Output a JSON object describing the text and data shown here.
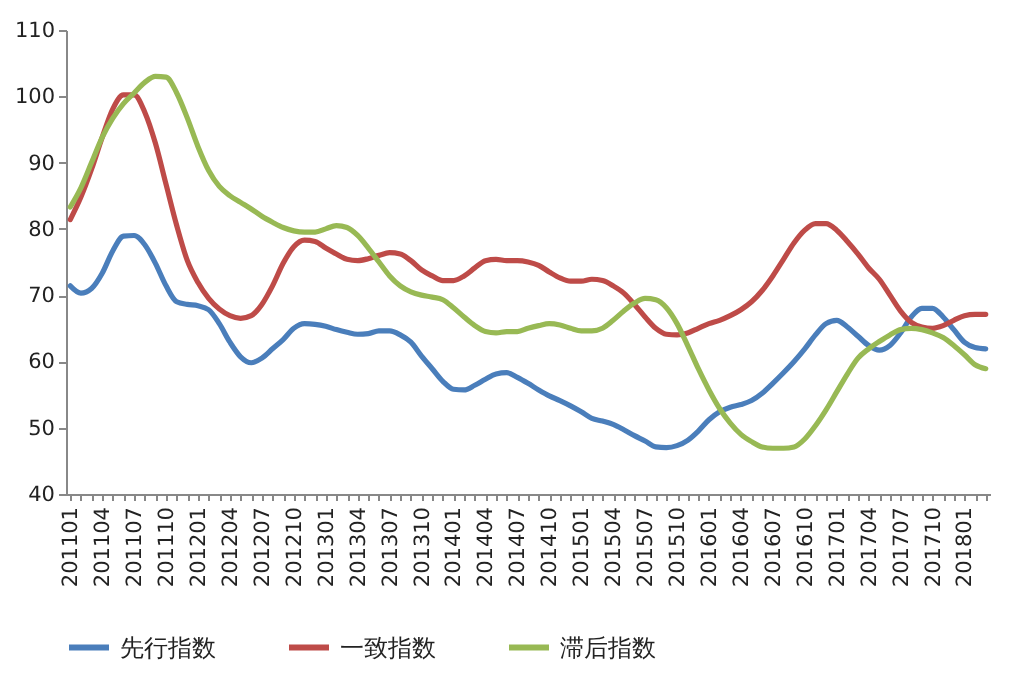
{
  "chart_data": {
    "type": "line",
    "categories": [
      "201101",
      null,
      null,
      "201104",
      null,
      null,
      "201107",
      null,
      null,
      "201110",
      null,
      null,
      "201201",
      null,
      null,
      "201204",
      null,
      null,
      "201207",
      null,
      null,
      "201210",
      null,
      null,
      "201301",
      null,
      null,
      "201304",
      null,
      null,
      "201307",
      null,
      null,
      "201310",
      null,
      null,
      "201401",
      null,
      null,
      "201404",
      null,
      null,
      "201407",
      null,
      null,
      "201410",
      null,
      null,
      "201501",
      null,
      null,
      "201504",
      null,
      null,
      "201507",
      null,
      null,
      "201510",
      null,
      null,
      "201601",
      null,
      null,
      "201604",
      null,
      null,
      "201607",
      null,
      null,
      "201610",
      null,
      null,
      "201701",
      null,
      null,
      "201704",
      null,
      null,
      "201707",
      null,
      null,
      "201710",
      null,
      null,
      "201801",
      null,
      null
    ],
    "series": [
      {
        "name": "先行指数",
        "color": "#4a7ebb",
        "values": [
          71.4,
          70.3,
          71,
          73.3,
          76.7,
          78.9,
          79,
          77.6,
          74.8,
          71.4,
          69,
          68.6,
          68.4,
          67.8,
          65.7,
          62.9,
          60.7,
          59.8,
          60.5,
          61.9,
          63.3,
          65,
          65.7,
          65.6,
          65.3,
          64.8,
          64.4,
          64.1,
          64.2,
          64.6,
          64.6,
          64,
          62.9,
          60.8,
          58.9,
          57,
          55.8,
          55.7,
          56.4,
          57.3,
          58.1,
          58.3,
          57.6,
          56.7,
          55.7,
          54.8,
          54.1,
          53.3,
          52.4,
          51.4,
          51,
          50.5,
          49.7,
          48.8,
          48,
          47.1,
          47,
          47.3,
          48.1,
          49.5,
          51.2,
          52.4,
          53.1,
          53.5,
          54.1,
          55.2,
          56.7,
          58.3,
          60,
          61.9,
          64,
          65.7,
          66.2,
          65.2,
          63.8,
          62.4,
          61.7,
          62.4,
          64.3,
          66.7,
          68,
          68,
          66.7,
          64.8,
          62.9,
          62.1,
          61.9
        ]
      },
      {
        "name": "一致指数",
        "color": "#be4b48",
        "values": [
          81.4,
          84.8,
          89,
          93.8,
          98.1,
          100.2,
          100.2,
          97.6,
          92.9,
          86.7,
          80.5,
          75.2,
          71.9,
          69.5,
          67.9,
          66.9,
          66.5,
          66.9,
          68.6,
          71.4,
          74.8,
          77.3,
          78.3,
          78.1,
          77.1,
          76.2,
          75.4,
          75.2,
          75.5,
          76,
          76.4,
          76.2,
          75.2,
          73.8,
          72.9,
          72.2,
          72.2,
          72.9,
          74.1,
          75.2,
          75.4,
          75.2,
          75.2,
          75,
          74.5,
          73.5,
          72.6,
          72.1,
          72.1,
          72.4,
          72.2,
          71.4,
          70.3,
          68.6,
          66.7,
          65,
          64.1,
          64,
          64.3,
          65,
          65.7,
          66.2,
          66.9,
          67.8,
          69,
          70.7,
          72.9,
          75.4,
          77.9,
          79.8,
          80.8,
          80.8,
          79.8,
          78.1,
          76.2,
          74.1,
          72.4,
          70,
          67.6,
          65.9,
          65.2,
          65,
          65.4,
          66.2,
          66.9,
          67.1,
          67.1
        ]
      },
      {
        "name": "滞后指数",
        "color": "#98b954",
        "values": [
          83.3,
          86.2,
          90,
          93.8,
          96.7,
          98.9,
          100.5,
          102.1,
          103,
          102.9,
          100.5,
          96.7,
          92.4,
          88.8,
          86.4,
          85,
          84,
          83,
          81.9,
          81,
          80.2,
          79.7,
          79.5,
          79.5,
          80,
          80.5,
          80.2,
          79,
          77.1,
          75,
          72.9,
          71.4,
          70.5,
          70,
          69.7,
          69.3,
          68.1,
          66.7,
          65.4,
          64.5,
          64.3,
          64.5,
          64.5,
          65,
          65.4,
          65.7,
          65.5,
          65,
          64.6,
          64.6,
          65,
          66.2,
          67.6,
          68.8,
          69.5,
          69.3,
          68.1,
          65.7,
          62.4,
          58.9,
          55.7,
          52.9,
          50.7,
          49,
          47.9,
          47.1,
          46.9,
          46.9,
          47.1,
          48.3,
          50.3,
          52.7,
          55.4,
          58.1,
          60.5,
          61.9,
          63,
          64,
          64.8,
          65,
          64.8,
          64.3,
          63.6,
          62.4,
          61,
          59.5,
          58.9
        ]
      }
    ],
    "ylim": [
      40,
      110
    ],
    "yticks": [
      40,
      50,
      60,
      70,
      80,
      90,
      100,
      110
    ],
    "grid": false,
    "legend": "bottom"
  }
}
